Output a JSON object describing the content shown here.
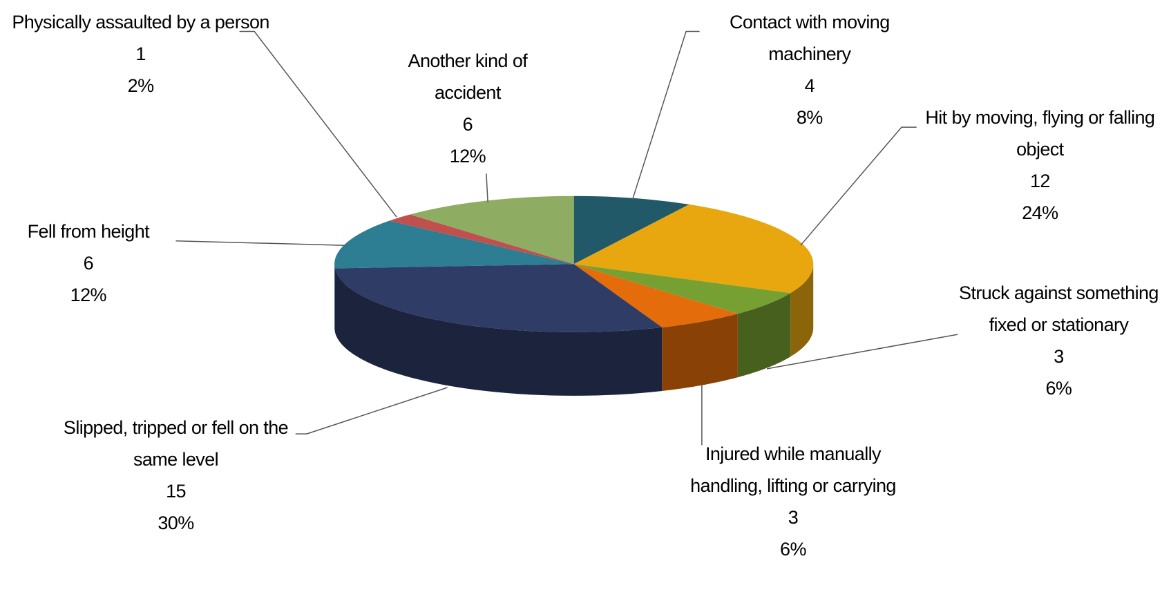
{
  "chart_data": {
    "type": "pie3d",
    "categories": [
      "Contact with moving machinery",
      "Hit by moving, flying or falling object",
      "Struck against something fixed or stationary",
      "Injured while manually handling, lifting or carrying",
      "Slipped, tripped or fell on the same level",
      "Fell from height",
      "Physically assaulted by a person",
      "Another kind of accident"
    ],
    "values": [
      4,
      12,
      3,
      3,
      15,
      6,
      1,
      6
    ],
    "percent_labels": [
      "8%",
      "24%",
      "6%",
      "6%",
      "30%",
      "12%",
      "2%",
      "12%"
    ],
    "colors": [
      "#215968",
      "#e9a70f",
      "#77a032",
      "#e46c0a",
      "#2f3c66",
      "#2d7d93",
      "#c0504d",
      "#8fac63"
    ]
  }
}
